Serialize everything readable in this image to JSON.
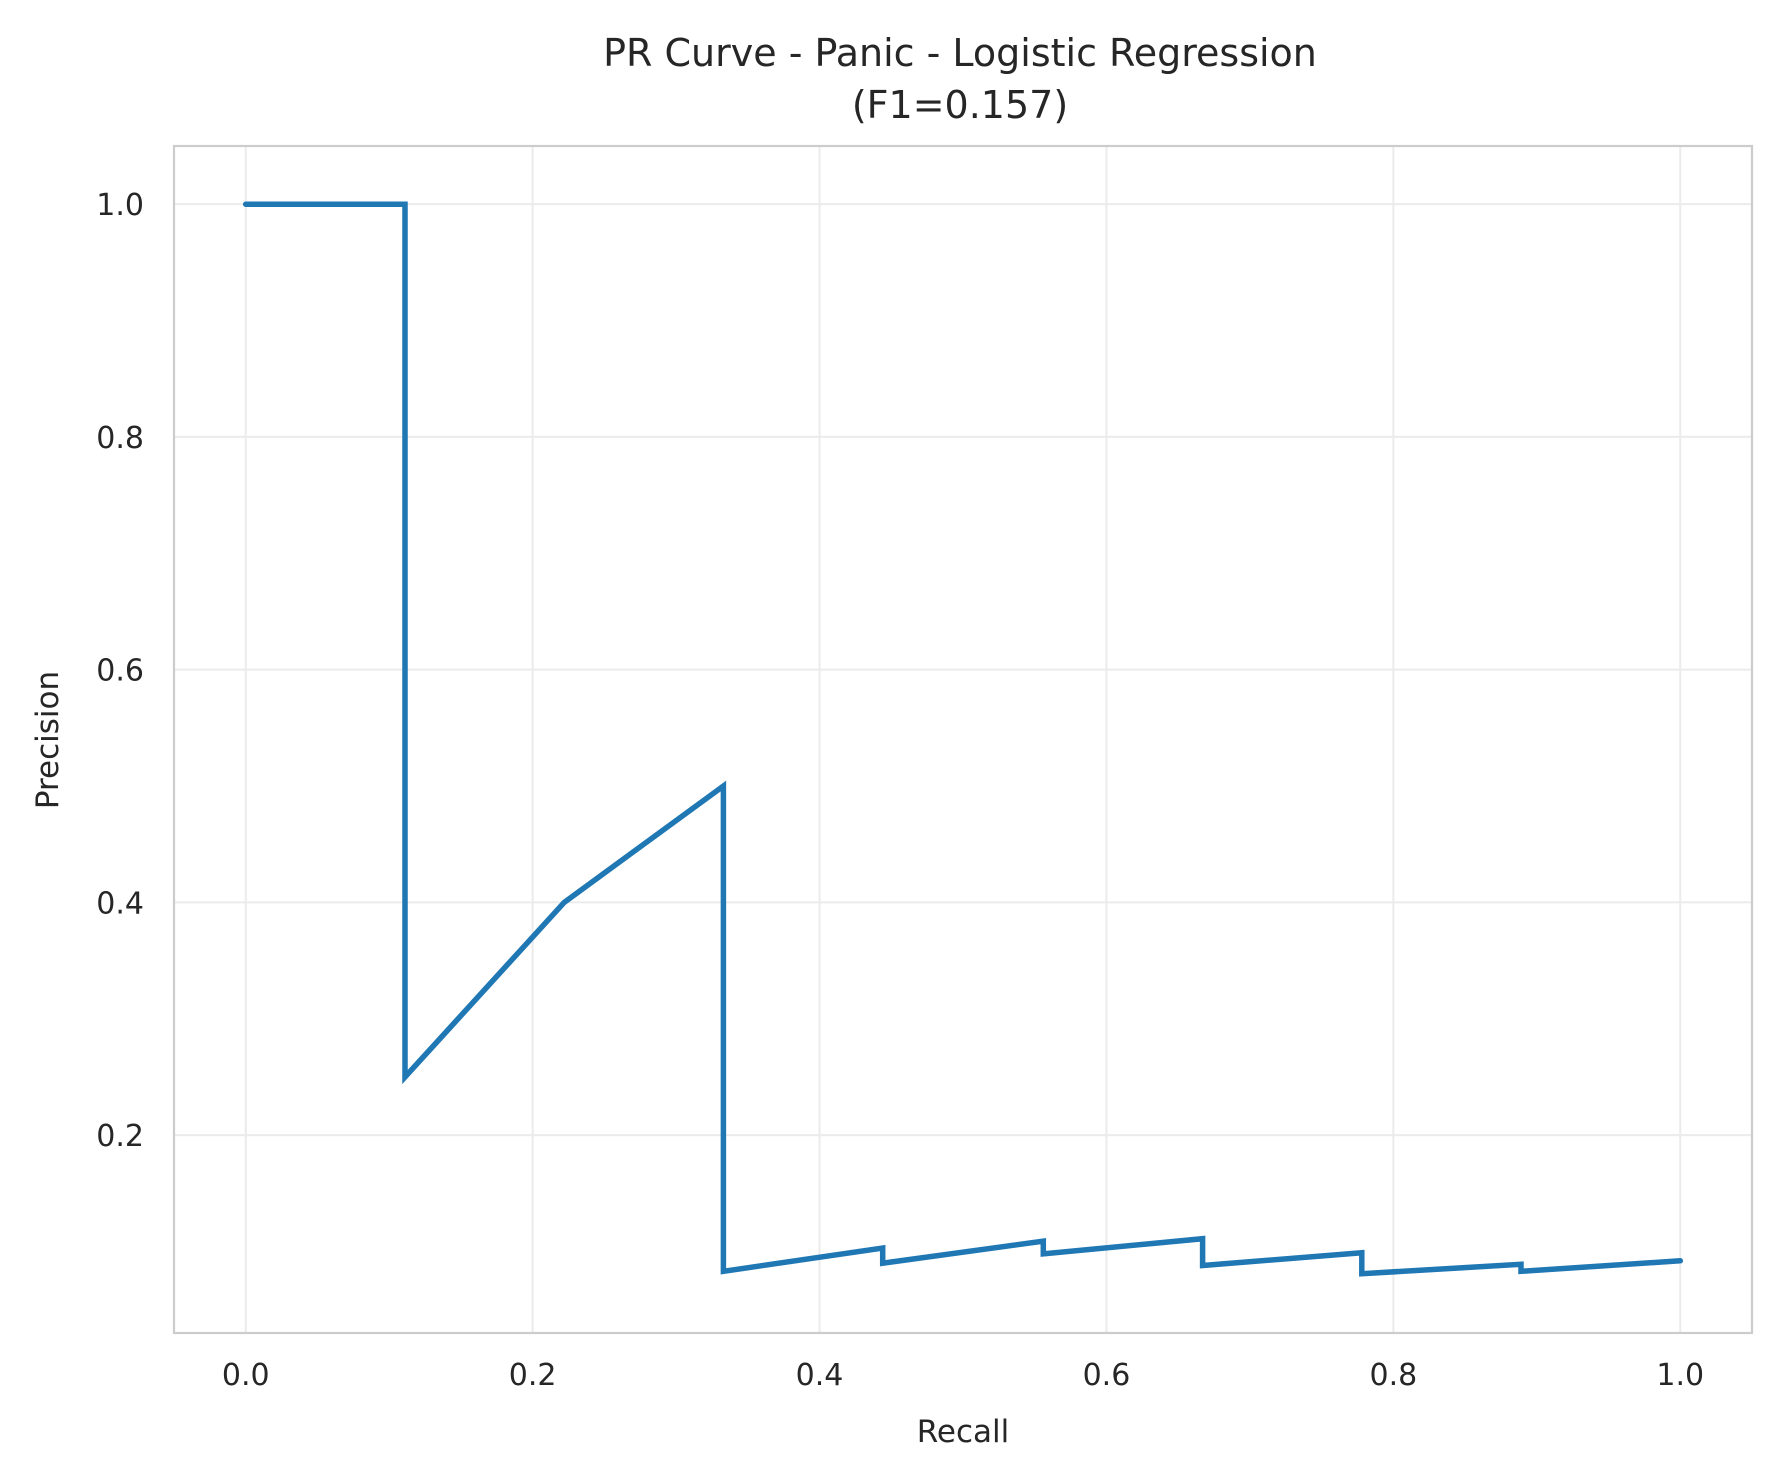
{
  "chart_data": {
    "type": "line",
    "title": "PR Curve - Panic - Logistic Regression",
    "subtitle": "(F1=0.157)",
    "xlabel": "Recall",
    "ylabel": "Precision",
    "xlim": [
      -0.05,
      1.05
    ],
    "ylim": [
      0.03,
      1.05
    ],
    "grid": true,
    "x_ticks": [
      0.0,
      0.2,
      0.4,
      0.6,
      0.8,
      1.0
    ],
    "y_ticks": [
      0.2,
      0.4,
      0.6,
      0.8,
      1.0
    ],
    "x_tick_labels": [
      "0.0",
      "0.2",
      "0.4",
      "0.6",
      "0.8",
      "1.0"
    ],
    "y_tick_labels": [
      "0.2",
      "0.4",
      "0.6",
      "0.8",
      "1.0"
    ],
    "series": [
      {
        "name": "PR Curve",
        "color": "#1f77b4",
        "x": [
          0.0,
          0.111,
          0.111,
          0.222,
          0.333,
          0.333,
          0.444,
          0.444,
          0.556,
          0.556,
          0.667,
          0.667,
          0.778,
          0.778,
          0.889,
          0.889,
          1.0
        ],
        "y": [
          1.0,
          1.0,
          0.25,
          0.4,
          0.5,
          0.083,
          0.103,
          0.09,
          0.109,
          0.098,
          0.111,
          0.088,
          0.099,
          0.081,
          0.089,
          0.083,
          0.092
        ]
      }
    ]
  },
  "colors": {
    "grid": "#ebebeb",
    "frame": "#cccccc",
    "text": "#262626",
    "line": "#1f77b4"
  }
}
